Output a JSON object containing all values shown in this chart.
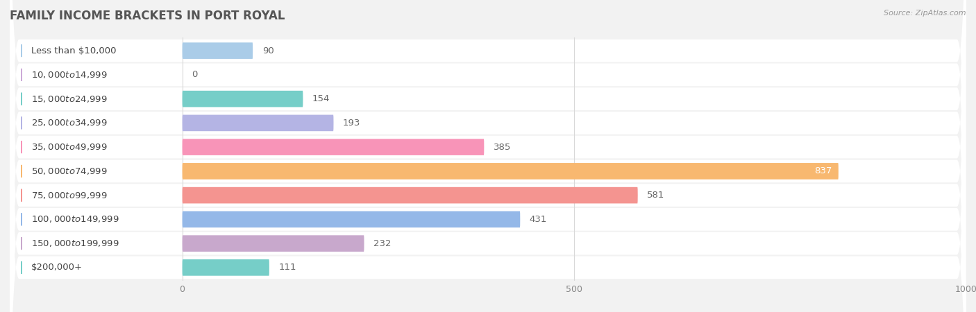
{
  "title": "FAMILY INCOME BRACKETS IN PORT ROYAL",
  "source": "Source: ZipAtlas.com",
  "categories": [
    "Less than $10,000",
    "$10,000 to $14,999",
    "$15,000 to $24,999",
    "$25,000 to $34,999",
    "$35,000 to $49,999",
    "$50,000 to $74,999",
    "$75,000 to $99,999",
    "$100,000 to $149,999",
    "$150,000 to $199,999",
    "$200,000+"
  ],
  "values": [
    90,
    0,
    154,
    193,
    385,
    837,
    581,
    431,
    232,
    111
  ],
  "bar_colors": [
    "#aacce8",
    "#ccaad8",
    "#76cec8",
    "#b4b4e4",
    "#f894b8",
    "#f8b870",
    "#f49490",
    "#94b8e8",
    "#c8a8cc",
    "#76cec8"
  ],
  "xlim_left": -220,
  "xlim_right": 1000,
  "xticks": [
    0,
    500,
    1000
  ],
  "bg_color": "#f2f2f2",
  "row_bg_color": "#ffffff",
  "row_alt_color": "#f0f0f0",
  "title_fontsize": 12,
  "label_fontsize": 9.5,
  "value_fontsize": 9.5,
  "source_fontsize": 8
}
